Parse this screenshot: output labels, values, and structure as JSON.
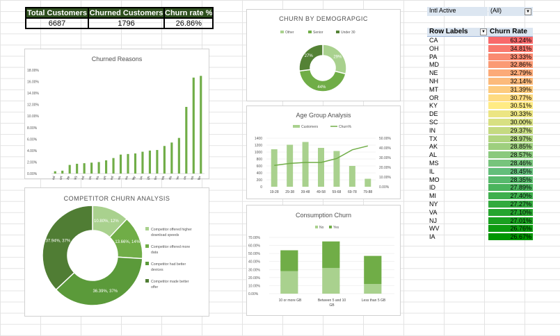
{
  "kpi": {
    "headers": [
      "Total Customers",
      "Churned Customers",
      "Churn rate %"
    ],
    "values": [
      "6687",
      "1796",
      "26.86%"
    ]
  },
  "pivot": {
    "filter_label": "Intl Active",
    "filter_value": "(All)",
    "row_labels_header": "Row Labels",
    "value_header": "Churn Rate",
    "rows": [
      {
        "state": "CA",
        "rate": "63.24%"
      },
      {
        "state": "OH",
        "rate": "34.81%"
      },
      {
        "state": "PA",
        "rate": "33.33%"
      },
      {
        "state": "MD",
        "rate": "32.86%"
      },
      {
        "state": "NE",
        "rate": "32.79%"
      },
      {
        "state": "NH",
        "rate": "32.14%"
      },
      {
        "state": "MT",
        "rate": "31.39%"
      },
      {
        "state": "OR",
        "rate": "30.77%"
      },
      {
        "state": "KY",
        "rate": "30.51%"
      },
      {
        "state": "DE",
        "rate": "30.33%"
      },
      {
        "state": "SC",
        "rate": "30.00%"
      },
      {
        "state": "IN",
        "rate": "29.37%"
      },
      {
        "state": "TX",
        "rate": "28.97%"
      },
      {
        "state": "AK",
        "rate": "28.85%"
      },
      {
        "state": "AL",
        "rate": "28.57%"
      },
      {
        "state": "MS",
        "rate": "28.46%"
      },
      {
        "state": "IL",
        "rate": "28.45%"
      },
      {
        "state": "MO",
        "rate": "28.35%"
      },
      {
        "state": "ID",
        "rate": "27.89%"
      },
      {
        "state": "MI",
        "rate": "27.40%"
      },
      {
        "state": "NY",
        "rate": "27.27%"
      },
      {
        "state": "VA",
        "rate": "27.10%"
      },
      {
        "state": "NJ",
        "rate": "27.01%"
      },
      {
        "state": "WV",
        "rate": "26.76%"
      },
      {
        "state": "IA",
        "rate": "26.67%"
      }
    ]
  },
  "colors": {
    "dark_green": "#548235",
    "mid_green": "#70ad47",
    "light_green": "#a9d18e",
    "kpi_header": "#2e4f1e"
  },
  "chart_data": [
    {
      "type": "bar",
      "title": "Churned Reasons",
      "categories": [
        "Deceased",
        "Poor expertise of online support",
        "Lack of self-service on Website",
        "(blank)",
        "Lack of affordable download/upload speed",
        "Service dissatisfaction",
        "Limited range of services",
        "Poor expertise of phone support",
        "Moved",
        "Long distance charges",
        "Extra data charges",
        "Network reliability",
        "Product dissatisfaction",
        "Price too high",
        "Attitude of service provider",
        "Competitor offered more data",
        "Competitor offered higher download speeds",
        "Don't know",
        "Attitude of support person",
        "Competitor had better devices",
        "Competitor made better offer"
      ],
      "values": [
        0.4,
        0.5,
        1.5,
        1.7,
        1.8,
        1.9,
        2.0,
        2.3,
        2.7,
        3.3,
        3.4,
        3.5,
        3.8,
        4.0,
        4.1,
        4.8,
        5.4,
        6.2,
        11.6,
        16.7,
        17.0
      ],
      "yticks": [
        "0.00%",
        "2.00%",
        "4.00%",
        "6.00%",
        "8.00%",
        "10.00%",
        "12.00%",
        "14.00%",
        "16.00%",
        "18.00%"
      ],
      "ylim": [
        0,
        18
      ]
    },
    {
      "type": "pie",
      "title": "CHURN BY DEMOGRAPGIC",
      "labels": [
        "Other",
        "Senior",
        "Under 30"
      ],
      "values": [
        29,
        44,
        27
      ],
      "data_labels": [
        "29%",
        "44%",
        "27%"
      ]
    },
    {
      "type": "bar",
      "title": "Age Group Analysis",
      "legend": [
        "Customers",
        "Churn%"
      ],
      "categories": [
        "19-28",
        "29-38",
        "39-48",
        "49-58",
        "59-68",
        "69-78",
        "79-88"
      ],
      "values": [
        1080,
        1210,
        1290,
        1120,
        1030,
        600,
        230
      ],
      "line_values": [
        22,
        24,
        25,
        25,
        29,
        38,
        42
      ],
      "yticks": [
        "0",
        "200",
        "400",
        "600",
        "800",
        "1000",
        "1200",
        "1400"
      ],
      "y2ticks": [
        "0.00%",
        "10.00%",
        "20.00%",
        "30.00%",
        "40.00%",
        "50.00%"
      ],
      "ylim": [
        0,
        1400
      ],
      "y2lim": [
        0,
        50
      ]
    },
    {
      "type": "pie",
      "title": "COMPETITOR CHURN ANALYSIS",
      "labels": [
        "Competitor offered higher download speeds",
        "Competitor offered more data",
        "Competitor had better devices",
        "Competitor made better offer"
      ],
      "values": [
        12,
        14,
        37,
        37
      ],
      "data_labels": [
        "10.80%, 12%",
        "13.66%, 14%",
        "36.39%, 37%",
        "37.94%, 37%"
      ]
    },
    {
      "type": "bar",
      "title": "Consumption Churn",
      "legend": [
        "No",
        "Yes"
      ],
      "categories": [
        "10 or more GB",
        "Between 5 and 10 GB",
        "Less than 5 GB"
      ],
      "series": [
        {
          "name": "No",
          "values": [
            28,
            32,
            12
          ]
        },
        {
          "name": "Yes",
          "values": [
            26,
            33,
            35
          ]
        }
      ],
      "yticks": [
        "0.00%",
        "10.00%",
        "20.00%",
        "30.00%",
        "40.00%",
        "50.00%",
        "60.00%",
        "70.00%"
      ],
      "ylim": [
        0,
        70
      ]
    }
  ]
}
